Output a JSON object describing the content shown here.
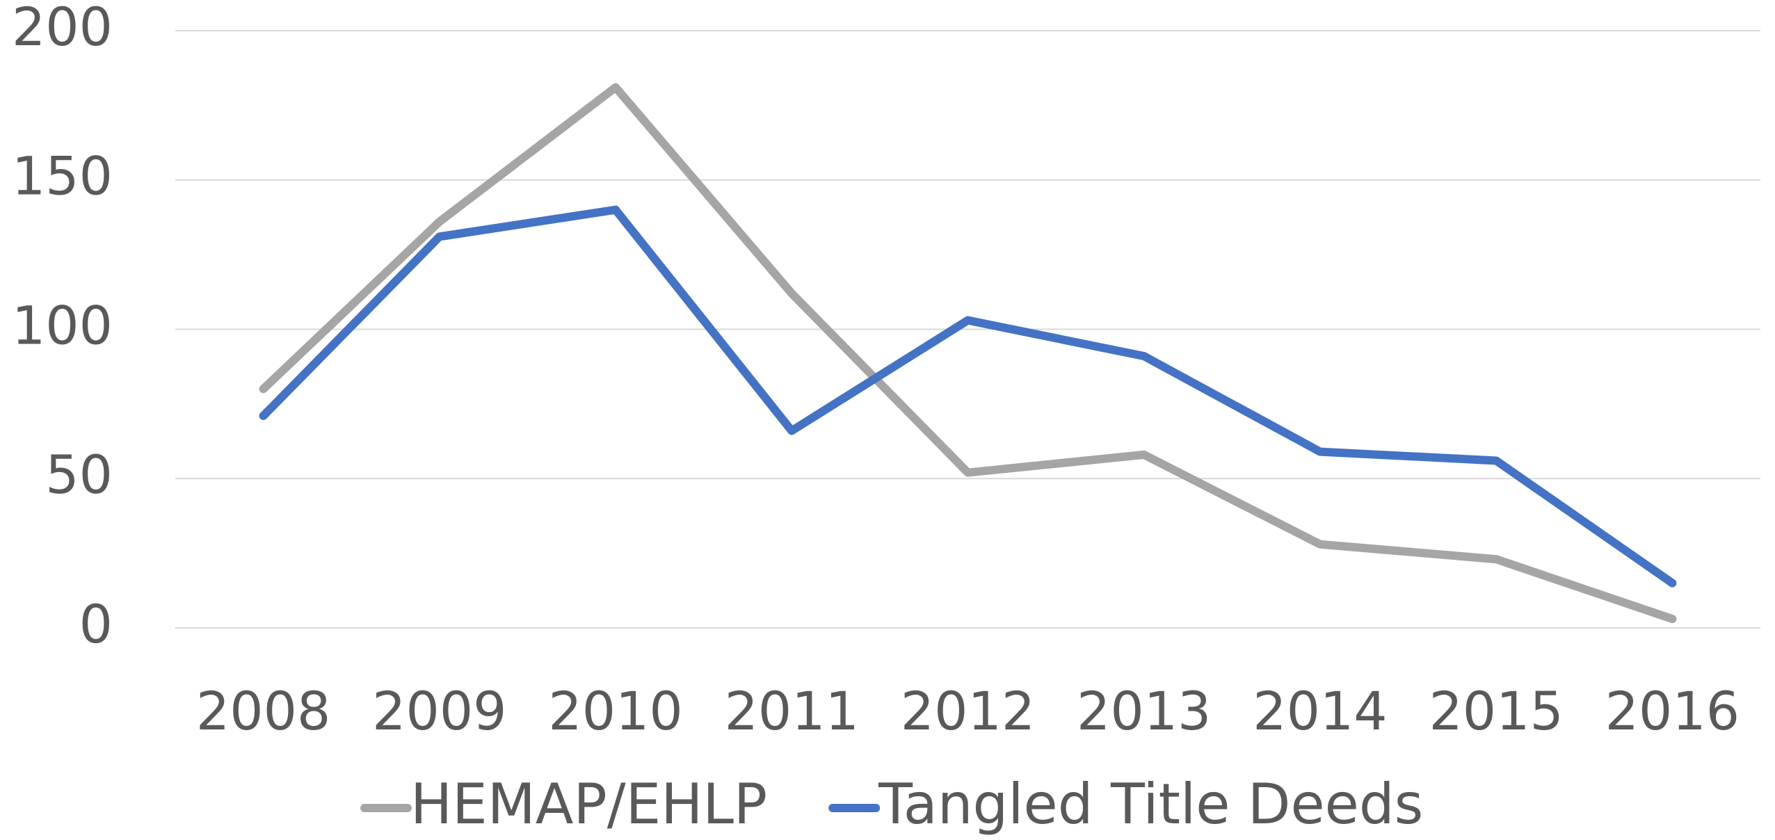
{
  "chart_data": {
    "type": "line",
    "categories": [
      "2008",
      "2009",
      "2010",
      "2011",
      "2012",
      "2013",
      "2014",
      "2015",
      "2016"
    ],
    "series": [
      {
        "name": "HEMAP/EHLP",
        "color": "#a5a5a5",
        "values": [
          80,
          136,
          181,
          112,
          52,
          58,
          28,
          23,
          3
        ]
      },
      {
        "name": "Tangled Title Deeds",
        "color": "#4472c4",
        "values": [
          71,
          131,
          140,
          66,
          103,
          91,
          59,
          56,
          15
        ]
      }
    ],
    "ylim": [
      0,
      200
    ],
    "yticks": [
      0,
      50,
      100,
      150,
      200
    ],
    "grid": true,
    "legend": "bottom"
  }
}
